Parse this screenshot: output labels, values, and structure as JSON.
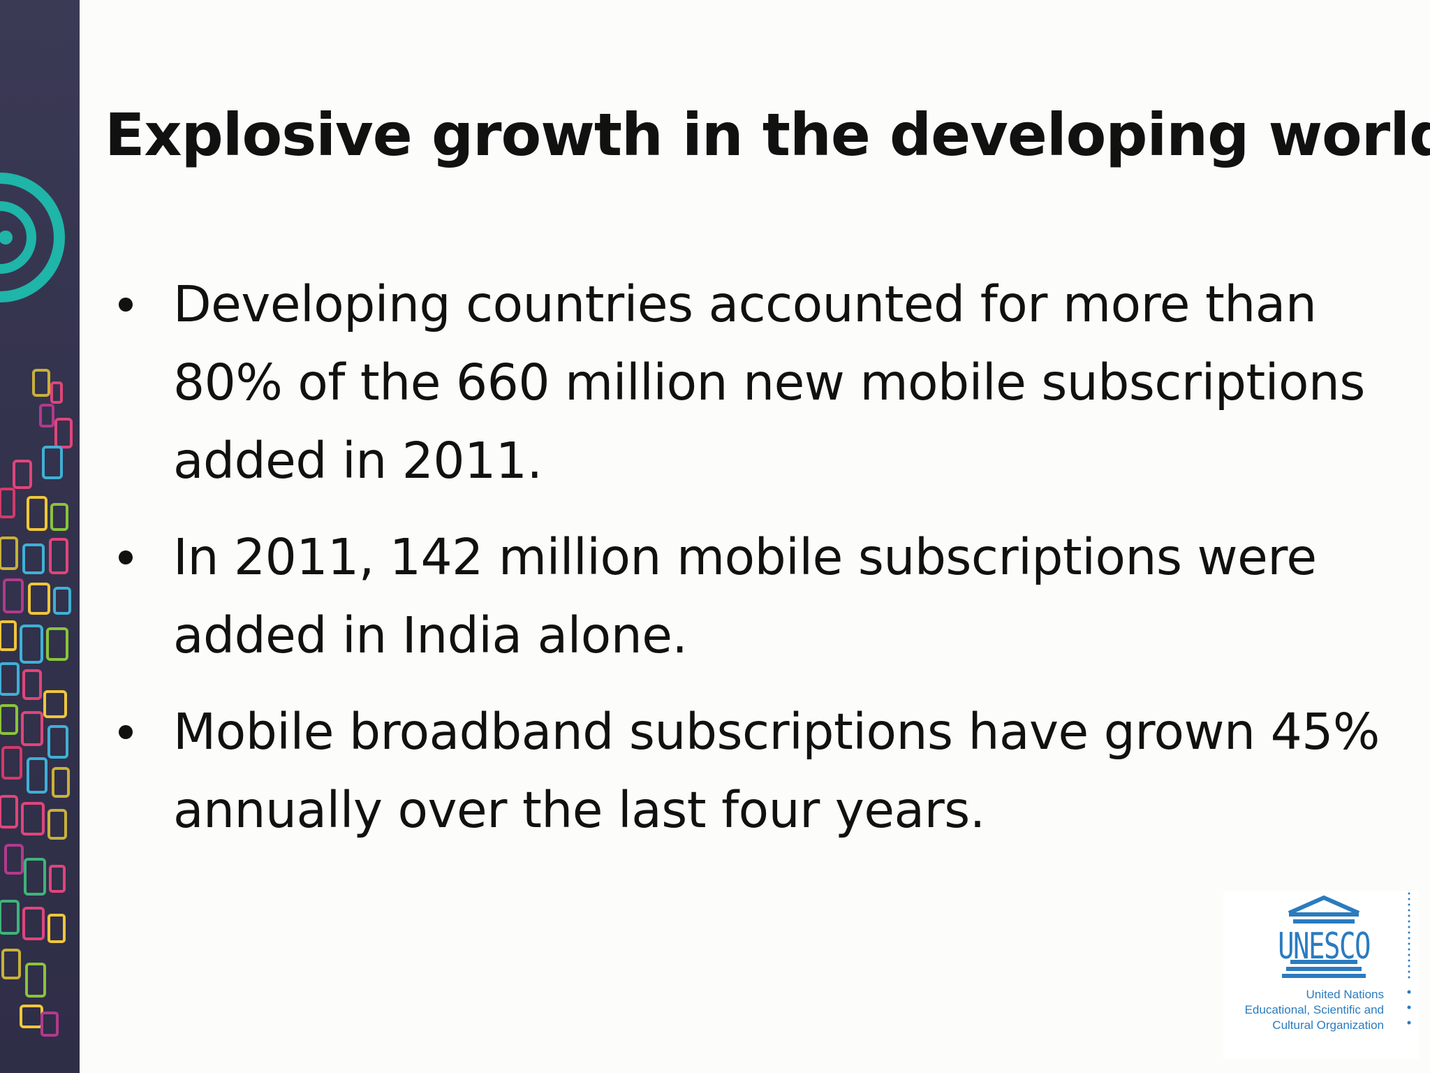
{
  "slide": {
    "title": "Explosive growth in the developing world:",
    "bullets": [
      {
        "text": "Developing countries accounted for more than 80% of the 660 million new mobile subscriptions added in 2011."
      },
      {
        "text": "In 2011, 142 million mobile subscriptions were added in India alone."
      },
      {
        "text": "Mobile broadband subscriptions have grown 45% annually over the last four years."
      }
    ]
  },
  "logo": {
    "wordmark": "UNESCO",
    "line1": "United Nations",
    "line2": "Educational, Scientific and",
    "line3": "Cultural Organization",
    "color": "#2b7bbf"
  },
  "theme": {
    "side_band_color": "#35344e",
    "accent_teal": "#1fb5a8"
  }
}
